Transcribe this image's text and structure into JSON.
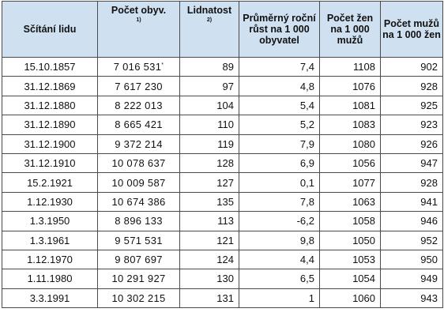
{
  "table": {
    "headers": {
      "census": "Sčítání lidu",
      "population": "Počet obyv.",
      "population_note": "1)",
      "density": "Lidnatost",
      "density_note": "2)",
      "growth": "Průměrný roční růst na 1 000 obyvatel",
      "women_per_men": "Počet žen na 1 000 mužů",
      "men_per_women": "Počet mužů na 1 000 žen"
    },
    "rows": [
      {
        "date": "15.10.1857",
        "population": "7 016 531",
        "mark": "*",
        "density": "89",
        "growth": "7,4",
        "women": "1108",
        "men": "902"
      },
      {
        "date": "31.12.1869",
        "population": "7 617 230",
        "mark": "",
        "density": "97",
        "growth": "4,8",
        "women": "1076",
        "men": "928"
      },
      {
        "date": "31.12.1880",
        "population": "8 222 013",
        "mark": "",
        "density": "104",
        "growth": "5,4",
        "women": "1081",
        "men": "925"
      },
      {
        "date": "31.12.1890",
        "population": "8 665 421",
        "mark": "",
        "density": "110",
        "growth": "5,2",
        "women": "1083",
        "men": "923"
      },
      {
        "date": "31.12.1900",
        "population": "9 372 214",
        "mark": "",
        "density": "119",
        "growth": "7,9",
        "women": "1080",
        "men": "926"
      },
      {
        "date": "31.12.1910",
        "population": "10 078 637",
        "mark": "",
        "density": "128",
        "growth": "6,9",
        "women": "1056",
        "men": "947"
      },
      {
        "date": "15.2.1921",
        "population": "10 009 587",
        "mark": "",
        "density": "127",
        "growth": "0,1",
        "women": "1077",
        "men": "928"
      },
      {
        "date": "1.12.1930",
        "population": "10 674 386",
        "mark": "",
        "density": "135",
        "growth": "7,8",
        "women": "1063",
        "men": "941"
      },
      {
        "date": "1.3.1950",
        "population": "8 896 133",
        "mark": "",
        "density": "113",
        "growth": "-6,2",
        "women": "1058",
        "men": "946"
      },
      {
        "date": "1.3.1961",
        "population": "9 571 531",
        "mark": "",
        "density": "121",
        "growth": "9,8",
        "women": "1050",
        "men": "952"
      },
      {
        "date": "1.12.1970",
        "population": "9 807 697",
        "mark": "",
        "density": "124",
        "growth": "4,4",
        "women": "1053",
        "men": "950"
      },
      {
        "date": "1.11.1980",
        "population": "10 291 927",
        "mark": "",
        "density": "130",
        "growth": "6,5",
        "women": "1054",
        "men": "949"
      },
      {
        "date": "3.3.1991",
        "population": "10 302 215",
        "mark": "",
        "density": "131",
        "growth": "1",
        "women": "1060",
        "men": "943"
      }
    ]
  }
}
